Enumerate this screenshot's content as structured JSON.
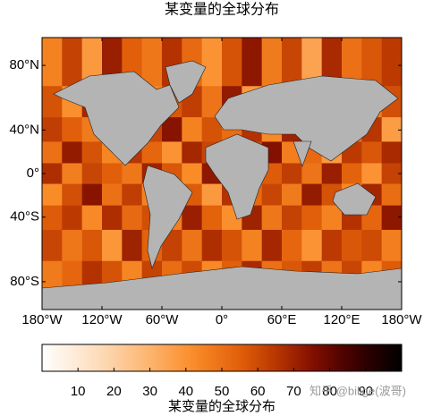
{
  "chart_data": {
    "type": "heatmap",
    "title": "某变量的全球分布",
    "xlim": [
      -180,
      180
    ],
    "ylim": [
      -90,
      90
    ],
    "xticks": [
      {
        "value": -180,
        "label": "180°W"
      },
      {
        "value": -120,
        "label": "120°W"
      },
      {
        "value": -60,
        "label": "60°W"
      },
      {
        "value": 0,
        "label": "0°"
      },
      {
        "value": 60,
        "label": "60°E"
      },
      {
        "value": 120,
        "label": "120°E"
      },
      {
        "value": 180,
        "label": "180°W"
      }
    ],
    "yticks": [
      {
        "value": 80,
        "label": "80°N"
      },
      {
        "value": 40,
        "label": "40°N"
      },
      {
        "value": 0,
        "label": "0°"
      },
      {
        "value": -40,
        "label": "40°S"
      },
      {
        "value": -80,
        "label": "80°S"
      }
    ],
    "values": [
      [
        45,
        62,
        38,
        71,
        55,
        48,
        66,
        52,
        40,
        58,
        73,
        47,
        61,
        35,
        68,
        50,
        57,
        64
      ],
      [
        58,
        41,
        69,
        52,
        76,
        44,
        57,
        63,
        49,
        72,
        38,
        60,
        54,
        67,
        42,
        71,
        46,
        59
      ],
      [
        63,
        55,
        47,
        68,
        39,
        61,
        74,
        45,
        58,
        51,
        66,
        43,
        70,
        56,
        62,
        48,
        65,
        37
      ],
      [
        50,
        72,
        58,
        44,
        65,
        53,
        40,
        69,
        61,
        47,
        59,
        75,
        46,
        52,
        38,
        64,
        57,
        68
      ],
      [
        67,
        46,
        61,
        55,
        48,
        70,
        57,
        42,
        73,
        60,
        44,
        56,
        63,
        49,
        71,
        54,
        40,
        62
      ],
      [
        42,
        59,
        74,
        50,
        63,
        45,
        68,
        56,
        38,
        66,
        52,
        61,
        47,
        72,
        58,
        43,
        69,
        51
      ],
      [
        56,
        64,
        43,
        67,
        52,
        59,
        46,
        71,
        54,
        41,
        70,
        48,
        62,
        55,
        45,
        66,
        53,
        73
      ],
      [
        61,
        48,
        57,
        39,
        70,
        54,
        62,
        49,
        67,
        58,
        45,
        69,
        53,
        40,
        64,
        57,
        60,
        46
      ],
      [
        47,
        53,
        66,
        58,
        44,
        62,
        51,
        60,
        43,
        55,
        68,
        50,
        57,
        63,
        49,
        61,
        44,
        56
      ]
    ],
    "colorbar": {
      "lim": [
        0,
        100
      ],
      "ticks": [
        10,
        20,
        30,
        40,
        50,
        60,
        70,
        80,
        90
      ],
      "label": "某变量的全球分布"
    },
    "watermark": "知乎 @bilige(波哥)"
  }
}
